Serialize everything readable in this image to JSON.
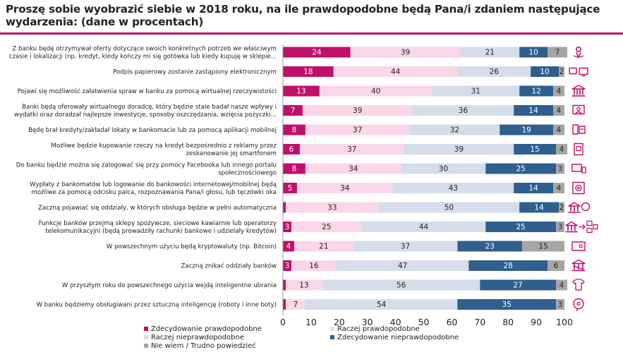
{
  "chart_data": {
    "type": "bar",
    "orientation": "horizontal",
    "stacked": true,
    "title": "Proszę sobie wyobrazić siebie w 2018 roku, na ile prawdopodobne będą Pana/i zdaniem następujące wydarzenia: (dane w procentach)",
    "xlim": [
      0,
      100
    ],
    "xticks": [
      0,
      10,
      20,
      30,
      40,
      50,
      60,
      70,
      80,
      90,
      100
    ],
    "grid": false,
    "legend_position": "bottom-left",
    "categories": [
      [
        "Z banku będę otrzymywał oferty dotyczące swoich konkretnych potrzeb we właściwym",
        "czasie i lokalizacji (np. kredyt, kiedy kończy mi się gotówka lub kiedy kupuję w sklepie..."
      ],
      [
        "Podpis papierowy zostanie zastąpiony elektronicznym"
      ],
      [
        "Pojawi się możliwość załatwienia spraw w banku za pomocą wirtualnej rzeczywistości"
      ],
      [
        "Banki będą oferowały wirtualnego doradcę, który będzie stale badał nasze wpływy i",
        "wydatki oraz doradzał najlepsze inwestycje, sposoby oszczędzania, wzięcia pożyczki..."
      ],
      [
        "Będę brał kredyty/zakładał lokaty w bankomacie lub za pomocą aplikacji mobilnej"
      ],
      [
        "Możliwe będzie kupowanie rzeczy na kredyt bezpośrednio z reklamy przez",
        "zeskanowanie jej smartfonem"
      ],
      [
        "Do banku będzie można się zalogować się przy pomocy Facebooka lub innego portalu",
        "społecznościowego"
      ],
      [
        "Wypłaty z bankomatów lub logowanie do bankowości internetowej/mobilnej będą",
        "możliwe za pomocą odcisku palca, rozpoznawania Pana/i głosu, lub tęczówki oka"
      ],
      [
        "Zaczną pojawiać się oddziały, w których obsługa będzie w pełni automatyczna"
      ],
      [
        "Funkcje banków przejmą sklepy spożywcze, sieciowe kawiarnie lub operatorzy",
        "telekomunikacyjni (będą prowadziły rachunki bankowe i udzielały kredytów)"
      ],
      [
        "W powszechnym użyciu będą kryptowaluty (np. Bitcoin)"
      ],
      [
        "Zaczną znikać oddziały banków"
      ],
      [
        "W przyszłym roku do powszechnego użycia wejdą inteligentne ubrania"
      ],
      [
        "W banku będziemy obsługiwani przez sztuczną inteligencję (roboty i inne boty)"
      ]
    ],
    "series": [
      {
        "name": "Zdecydowanie prawdopodobne",
        "color": "#c00f6a",
        "values": [
          24,
          18,
          13,
          7,
          8,
          6,
          8,
          5,
          1,
          3,
          4,
          3,
          1,
          1
        ]
      },
      {
        "name": "Raczej prawdopodobne",
        "color": "#f9d7e8",
        "values": [
          39,
          44,
          40,
          39,
          37,
          37,
          34,
          34,
          33,
          25,
          21,
          16,
          13,
          7
        ]
      },
      {
        "name": "Raczej nieprawdopodobne",
        "color": "#d4dde9",
        "values": [
          21,
          26,
          31,
          36,
          32,
          39,
          30,
          43,
          50,
          44,
          37,
          47,
          56,
          54
        ]
      },
      {
        "name": "Zdecydowanie nieprawdopodobne",
        "color": "#2f5f8f",
        "values": [
          10,
          10,
          12,
          14,
          19,
          15,
          25,
          14,
          14,
          25,
          23,
          28,
          27,
          35
        ]
      },
      {
        "name": "Nie wiem / Trudno powiedzieć",
        "color": "#a6a6a6",
        "values": [
          7,
          2,
          4,
          4,
          4,
          4,
          3,
          4,
          2,
          3,
          15,
          6,
          4,
          3
        ]
      }
    ],
    "labels": [
      [
        "24",
        "39",
        "21",
        "10",
        "7"
      ],
      [
        "18",
        "44",
        "26",
        "10",
        "2"
      ],
      [
        "13",
        "40",
        "31",
        "12",
        "4"
      ],
      [
        "7",
        "39",
        "36",
        "14",
        "4"
      ],
      [
        "8",
        "37",
        "32",
        "19",
        "4"
      ],
      [
        "6",
        "37",
        "39",
        "15",
        "4"
      ],
      [
        "8",
        "34",
        "30",
        "25",
        "3"
      ],
      [
        "5",
        "34",
        "43",
        "14",
        "4"
      ],
      [
        "",
        "33",
        "50",
        "14",
        "2"
      ],
      [
        "3",
        "25",
        "44",
        "25",
        "3"
      ],
      [
        "4",
        "21",
        "37",
        "23",
        "15"
      ],
      [
        "3",
        "16",
        "47",
        "28",
        "6"
      ],
      [
        "",
        "13",
        "56",
        "27",
        "4"
      ],
      [
        "",
        "7",
        "54",
        "35",
        "3"
      ]
    ],
    "label_colors": [
      "#ffffff",
      "#222222",
      "#222222",
      "#ffffff",
      "#222222"
    ],
    "row_icons": [
      "location-icon",
      "devices-icon",
      "bank-icon",
      "advisor-icon",
      "mobile-atm-icon",
      "smartphone-scan-icon",
      "social-login-icon",
      "biometric-atm-icon",
      "automated-branch-icon",
      "bank-to-shop-icon",
      "crypto-wallet-icon",
      "closing-branch-icon",
      "smart-clothing-icon",
      "ai-robot-icon"
    ],
    "icon_color": "#c00f6a"
  }
}
